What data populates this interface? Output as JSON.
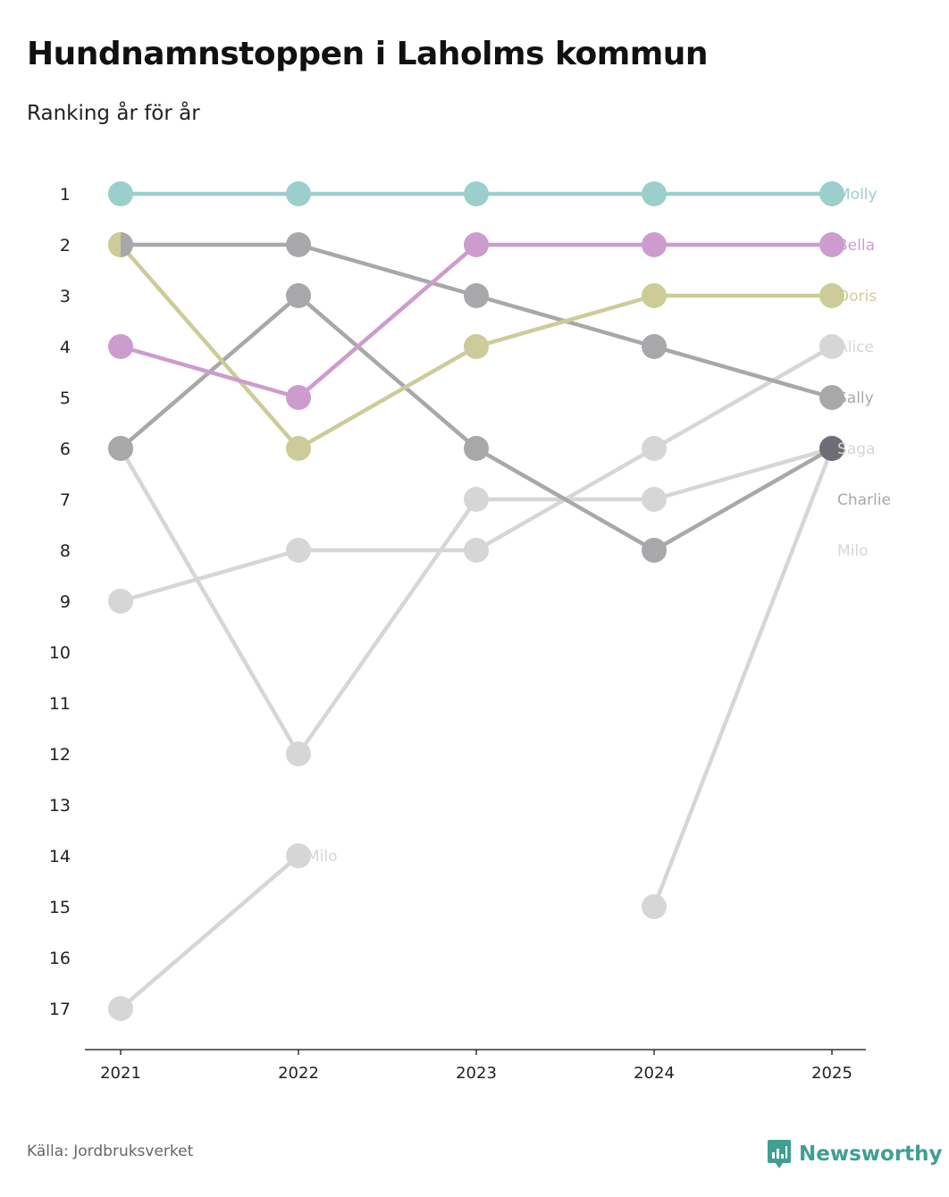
{
  "title": "Hundnamnstoppen i Laholms kommun",
  "subtitle": "Ranking år för år",
  "source": "Källa: Jordbruksverket",
  "brand": "Newsworthy",
  "brand_color": "#3f9f92",
  "chart_data": {
    "type": "line",
    "title": "Hundnamnstoppen i Laholms kommun",
    "subtitle": "Ranking år för år",
    "xlabel": "",
    "ylabel": "",
    "x": [
      "2021",
      "2022",
      "2023",
      "2024",
      "2025"
    ],
    "y_ticks": [
      1,
      2,
      3,
      4,
      5,
      6,
      7,
      8,
      9,
      10,
      11,
      12,
      13,
      14,
      15,
      16,
      17
    ],
    "ylim": [
      1,
      17
    ],
    "y_inverted": true,
    "grid": false,
    "series": [
      {
        "name": "Molly",
        "color": "#9acfcc",
        "values": [
          1,
          1,
          1,
          1,
          1
        ]
      },
      {
        "name": "Bella",
        "color": "#cd9ccf",
        "values": [
          4,
          5,
          2,
          2,
          2
        ]
      },
      {
        "name": "Doris",
        "color": "#cdcc98",
        "values": [
          2,
          6,
          4,
          3,
          3
        ]
      },
      {
        "name": "Alice",
        "color": "#d6d6d6",
        "values": [
          9,
          8,
          8,
          6,
          4
        ]
      },
      {
        "name": "Sally",
        "color": "#a8a8aa",
        "values": [
          2,
          2,
          3,
          4,
          5
        ]
      },
      {
        "name": "Saga",
        "color": "#d6d6d6",
        "values": [
          6,
          12,
          7,
          7,
          6
        ]
      },
      {
        "name": "Charlie",
        "color": "#a8a8aa",
        "values": [
          6,
          3,
          6,
          8,
          6
        ]
      },
      {
        "name": "Milo",
        "color": "#d6d6d6",
        "values": [
          17,
          14,
          null,
          15,
          6
        ]
      }
    ],
    "end_labels": [
      {
        "text": "Molly",
        "color": "#9acfcc",
        "rank": 1
      },
      {
        "text": "Bella",
        "color": "#cd9ccf",
        "rank": 2
      },
      {
        "text": "Doris",
        "color": "#cdcc98",
        "rank": 3
      },
      {
        "text": "Alice",
        "color": "#d6d6d6",
        "rank": 4
      },
      {
        "text": "Sally",
        "color": "#a8a8aa",
        "rank": 5
      },
      {
        "text": "Saga",
        "color": "#d6d6d6",
        "rank": 6
      },
      {
        "text": "Charlie",
        "color": "#a8a8aa",
        "rank": 7
      },
      {
        "text": "Milo",
        "color": "#d6d6d6",
        "rank": 8
      }
    ],
    "inline_labels": [
      {
        "text": "Milo",
        "color": "#d6d6d6",
        "x": "2022",
        "rank": 14
      }
    ],
    "highlight_point": {
      "x": "2025",
      "rank": 6,
      "color": "#6d6d73"
    }
  }
}
